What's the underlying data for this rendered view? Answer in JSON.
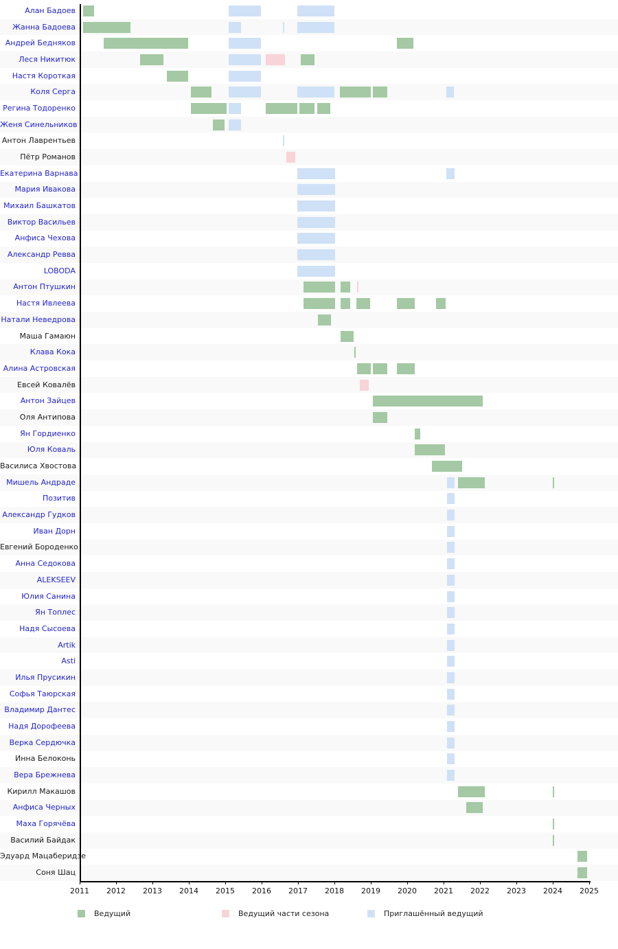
{
  "axis": {
    "years": [
      2011,
      2012,
      2013,
      2014,
      2015,
      2016,
      2017,
      2018,
      2019,
      2020,
      2021,
      2022,
      2023,
      2024,
      2025
    ]
  },
  "legend": [
    {
      "label": "Ведущий",
      "type": "host",
      "color": "#a4c9a4"
    },
    {
      "label": "Ведущий части сезона",
      "type": "part",
      "color": "#f6d4d7"
    },
    {
      "label": "Приглашённый ведущий",
      "type": "guest",
      "color": "#cfe1f6"
    }
  ],
  "chart_data": {
    "type": "gantt",
    "x_range": [
      2011,
      2025
    ],
    "legend_position": "bottom",
    "colors": {
      "host": "#a4c9a4",
      "part": "#f8d3d7",
      "guest": "#cfe1f6",
      "link_text": "#2323cb",
      "plain_text": "#1a1a1a"
    },
    "rows": [
      {
        "name": "Алан Бадоев",
        "link": true,
        "bars": [
          {
            "s": 2011.09,
            "e": 2011.4,
            "t": "host"
          },
          {
            "s": 2015.09,
            "e": 2015.98,
            "t": "guest"
          },
          {
            "s": 2016.98,
            "e": 2018.0,
            "t": "guest"
          }
        ]
      },
      {
        "name": "Жанна Бадоева",
        "link": true,
        "bars": [
          {
            "s": 2011.09,
            "e": 2012.4,
            "t": "host"
          },
          {
            "s": 2015.09,
            "e": 2015.43,
            "t": "guest"
          },
          {
            "s": 2016.58,
            "e": 2016.58,
            "t": "guest"
          },
          {
            "s": 2016.98,
            "e": 2018.0,
            "t": "guest"
          }
        ]
      },
      {
        "name": "Андрей Бедняков",
        "link": true,
        "bars": [
          {
            "s": 2011.66,
            "e": 2013.98,
            "t": "host"
          },
          {
            "s": 2015.09,
            "e": 2015.98,
            "t": "guest"
          },
          {
            "s": 2019.72,
            "e": 2020.17,
            "t": "host"
          }
        ]
      },
      {
        "name": "Леся Никитюк",
        "link": true,
        "bars": [
          {
            "s": 2012.66,
            "e": 2013.3,
            "t": "host"
          },
          {
            "s": 2015.09,
            "e": 2015.98,
            "t": "guest"
          },
          {
            "s": 2016.11,
            "e": 2016.64,
            "t": "part"
          },
          {
            "s": 2017.08,
            "e": 2017.45,
            "t": "host"
          }
        ]
      },
      {
        "name": "Настя Короткая",
        "link": true,
        "bars": [
          {
            "s": 2013.4,
            "e": 2013.98,
            "t": "host"
          },
          {
            "s": 2015.09,
            "e": 2015.98,
            "t": "guest"
          }
        ]
      },
      {
        "name": "Коля Серга",
        "link": true,
        "bars": [
          {
            "s": 2014.06,
            "e": 2014.62,
            "t": "host"
          },
          {
            "s": 2015.09,
            "e": 2015.98,
            "t": "guest"
          },
          {
            "s": 2016.98,
            "e": 2018.0,
            "t": "guest"
          },
          {
            "s": 2018.15,
            "e": 2019.0,
            "t": "host"
          },
          {
            "s": 2019.06,
            "e": 2019.45,
            "t": "host"
          },
          {
            "s": 2021.08,
            "e": 2021.28,
            "t": "guest"
          }
        ]
      },
      {
        "name": "Регина Тодоренко",
        "link": true,
        "bars": [
          {
            "s": 2014.06,
            "e": 2015.04,
            "t": "host"
          },
          {
            "s": 2015.09,
            "e": 2015.43,
            "t": "guest"
          },
          {
            "s": 2016.11,
            "e": 2016.98,
            "t": "host"
          },
          {
            "s": 2017.04,
            "e": 2017.45,
            "t": "host"
          },
          {
            "s": 2017.53,
            "e": 2017.89,
            "t": "host"
          }
        ]
      },
      {
        "name": "Женя Синельников",
        "link": true,
        "bars": [
          {
            "s": 2014.66,
            "e": 2014.98,
            "t": "host"
          },
          {
            "s": 2015.09,
            "e": 2015.43,
            "t": "guest"
          }
        ]
      },
      {
        "name": "Антон Лаврентьев",
        "link": false,
        "bars": [
          {
            "s": 2016.58,
            "e": 2016.58,
            "t": "guest"
          }
        ]
      },
      {
        "name": "Пётр Романов",
        "link": false,
        "bars": [
          {
            "s": 2016.68,
            "e": 2016.92,
            "t": "part"
          }
        ]
      },
      {
        "name": "Екатерина Варнава",
        "link": true,
        "bars": [
          {
            "s": 2016.98,
            "e": 2018.02,
            "t": "guest"
          },
          {
            "s": 2021.08,
            "e": 2021.3,
            "t": "guest"
          }
        ]
      },
      {
        "name": "Мария Ивакова",
        "link": true,
        "bars": [
          {
            "s": 2016.98,
            "e": 2018.02,
            "t": "guest"
          }
        ]
      },
      {
        "name": "Михаил Башкатов",
        "link": true,
        "bars": [
          {
            "s": 2016.98,
            "e": 2018.02,
            "t": "guest"
          }
        ]
      },
      {
        "name": "Виктор Васильев",
        "link": true,
        "bars": [
          {
            "s": 2016.98,
            "e": 2018.02,
            "t": "guest"
          }
        ]
      },
      {
        "name": "Анфиса Чехова",
        "link": true,
        "bars": [
          {
            "s": 2016.98,
            "e": 2018.02,
            "t": "guest"
          }
        ]
      },
      {
        "name": "Александр Ревва",
        "link": true,
        "bars": [
          {
            "s": 2016.98,
            "e": 2018.02,
            "t": "guest"
          }
        ]
      },
      {
        "name": "LOBODA",
        "link": true,
        "bars": [
          {
            "s": 2016.98,
            "e": 2018.02,
            "t": "guest"
          }
        ]
      },
      {
        "name": "Антон Птушкин",
        "link": true,
        "bars": [
          {
            "s": 2017.15,
            "e": 2018.02,
            "t": "host"
          },
          {
            "s": 2018.17,
            "e": 2018.43,
            "t": "host"
          },
          {
            "s": 2018.62,
            "e": 2018.62,
            "t": "part"
          }
        ]
      },
      {
        "name": "Настя Ивлеева",
        "link": true,
        "bars": [
          {
            "s": 2017.15,
            "e": 2018.02,
            "t": "host"
          },
          {
            "s": 2018.17,
            "e": 2018.43,
            "t": "host"
          },
          {
            "s": 2018.6,
            "e": 2018.98,
            "t": "host"
          },
          {
            "s": 2019.72,
            "e": 2020.21,
            "t": "host"
          },
          {
            "s": 2020.79,
            "e": 2021.06,
            "t": "host"
          }
        ]
      },
      {
        "name": "Натали Неведрова",
        "link": true,
        "bars": [
          {
            "s": 2017.55,
            "e": 2017.91,
            "t": "host"
          }
        ]
      },
      {
        "name": "Маша Гамаюн",
        "link": false,
        "bars": [
          {
            "s": 2018.17,
            "e": 2018.53,
            "t": "host"
          }
        ]
      },
      {
        "name": "Клава Кока",
        "link": true,
        "bars": [
          {
            "s": 2018.55,
            "e": 2018.55,
            "t": "host"
          }
        ]
      },
      {
        "name": "Алина Астровская",
        "link": true,
        "bars": [
          {
            "s": 2018.62,
            "e": 2019.0,
            "t": "host"
          },
          {
            "s": 2019.06,
            "e": 2019.45,
            "t": "host"
          },
          {
            "s": 2019.72,
            "e": 2020.21,
            "t": "host"
          }
        ]
      },
      {
        "name": "Евсей Ковалёв",
        "link": false,
        "bars": [
          {
            "s": 2018.7,
            "e": 2018.94,
            "t": "part"
          }
        ]
      },
      {
        "name": "Антон Зайцев",
        "link": true,
        "bars": [
          {
            "s": 2019.06,
            "e": 2022.08,
            "t": "host"
          }
        ]
      },
      {
        "name": "Оля Антипова",
        "link": false,
        "bars": [
          {
            "s": 2019.06,
            "e": 2019.45,
            "t": "host"
          }
        ]
      },
      {
        "name": "Ян Гордиенко",
        "link": true,
        "bars": [
          {
            "s": 2020.21,
            "e": 2020.36,
            "t": "host"
          }
        ]
      },
      {
        "name": "Юля Коваль",
        "link": true,
        "bars": [
          {
            "s": 2020.21,
            "e": 2021.04,
            "t": "host"
          }
        ]
      },
      {
        "name": "Василиса Хвостова",
        "link": false,
        "bars": [
          {
            "s": 2020.68,
            "e": 2021.51,
            "t": "host"
          }
        ]
      },
      {
        "name": "Мишель Андраде",
        "link": true,
        "bars": [
          {
            "s": 2021.09,
            "e": 2021.3,
            "t": "guest"
          },
          {
            "s": 2021.4,
            "e": 2022.13,
            "t": "host"
          },
          {
            "s": 2024.0,
            "e": 2024.0,
            "t": "host"
          }
        ]
      },
      {
        "name": "Позитив",
        "link": true,
        "bars": [
          {
            "s": 2021.09,
            "e": 2021.3,
            "t": "guest"
          }
        ]
      },
      {
        "name": "Александр Гудков",
        "link": true,
        "bars": [
          {
            "s": 2021.09,
            "e": 2021.3,
            "t": "guest"
          }
        ]
      },
      {
        "name": "Иван Дорн",
        "link": true,
        "bars": [
          {
            "s": 2021.09,
            "e": 2021.3,
            "t": "guest"
          }
        ]
      },
      {
        "name": "Евгений Бороденко",
        "link": false,
        "bars": [
          {
            "s": 2021.09,
            "e": 2021.3,
            "t": "guest"
          }
        ]
      },
      {
        "name": "Анна Седокова",
        "link": true,
        "bars": [
          {
            "s": 2021.09,
            "e": 2021.3,
            "t": "guest"
          }
        ]
      },
      {
        "name": "ALEKSEEV",
        "link": true,
        "bars": [
          {
            "s": 2021.09,
            "e": 2021.3,
            "t": "guest"
          }
        ]
      },
      {
        "name": "Юлия Санина",
        "link": true,
        "bars": [
          {
            "s": 2021.09,
            "e": 2021.3,
            "t": "guest"
          }
        ]
      },
      {
        "name": "Ян Топлес",
        "link": true,
        "bars": [
          {
            "s": 2021.09,
            "e": 2021.3,
            "t": "guest"
          }
        ]
      },
      {
        "name": "Надя Сысоева",
        "link": true,
        "bars": [
          {
            "s": 2021.09,
            "e": 2021.3,
            "t": "guest"
          }
        ]
      },
      {
        "name": "Artik",
        "link": true,
        "bars": [
          {
            "s": 2021.09,
            "e": 2021.3,
            "t": "guest"
          }
        ]
      },
      {
        "name": "Asti",
        "link": true,
        "bars": [
          {
            "s": 2021.09,
            "e": 2021.3,
            "t": "guest"
          }
        ]
      },
      {
        "name": "Илья Прусикин",
        "link": true,
        "bars": [
          {
            "s": 2021.09,
            "e": 2021.3,
            "t": "guest"
          }
        ]
      },
      {
        "name": "Софья Таюрская",
        "link": true,
        "bars": [
          {
            "s": 2021.09,
            "e": 2021.3,
            "t": "guest"
          }
        ]
      },
      {
        "name": "Владимир Дантес",
        "link": true,
        "bars": [
          {
            "s": 2021.09,
            "e": 2021.3,
            "t": "guest"
          }
        ]
      },
      {
        "name": "Надя Дорофеева",
        "link": true,
        "bars": [
          {
            "s": 2021.09,
            "e": 2021.3,
            "t": "guest"
          }
        ]
      },
      {
        "name": "Верка Сердючка",
        "link": true,
        "bars": [
          {
            "s": 2021.09,
            "e": 2021.3,
            "t": "guest"
          }
        ]
      },
      {
        "name": "Инна Белоконь",
        "link": false,
        "bars": [
          {
            "s": 2021.09,
            "e": 2021.3,
            "t": "guest"
          }
        ]
      },
      {
        "name": "Вера Брежнева",
        "link": true,
        "bars": [
          {
            "s": 2021.09,
            "e": 2021.3,
            "t": "guest"
          }
        ]
      },
      {
        "name": "Кирилл Макашов",
        "link": false,
        "bars": [
          {
            "s": 2021.4,
            "e": 2022.13,
            "t": "host"
          },
          {
            "s": 2024.0,
            "e": 2024.0,
            "t": "host"
          }
        ]
      },
      {
        "name": "Анфиса Черных",
        "link": true,
        "bars": [
          {
            "s": 2021.62,
            "e": 2022.08,
            "t": "host"
          }
        ]
      },
      {
        "name": "Маха Горячёва",
        "link": true,
        "bars": [
          {
            "s": 2024.0,
            "e": 2024.0,
            "t": "host"
          }
        ]
      },
      {
        "name": "Василий Байдак",
        "link": false,
        "bars": [
          {
            "s": 2024.0,
            "e": 2024.0,
            "t": "host"
          }
        ]
      },
      {
        "name": "Эдуард Мацаберидзе",
        "link": false,
        "bars": [
          {
            "s": 2024.68,
            "e": 2024.94,
            "t": "host"
          }
        ]
      },
      {
        "name": "Соня Шац",
        "link": false,
        "bars": [
          {
            "s": 2024.68,
            "e": 2024.94,
            "t": "host"
          }
        ]
      }
    ]
  }
}
